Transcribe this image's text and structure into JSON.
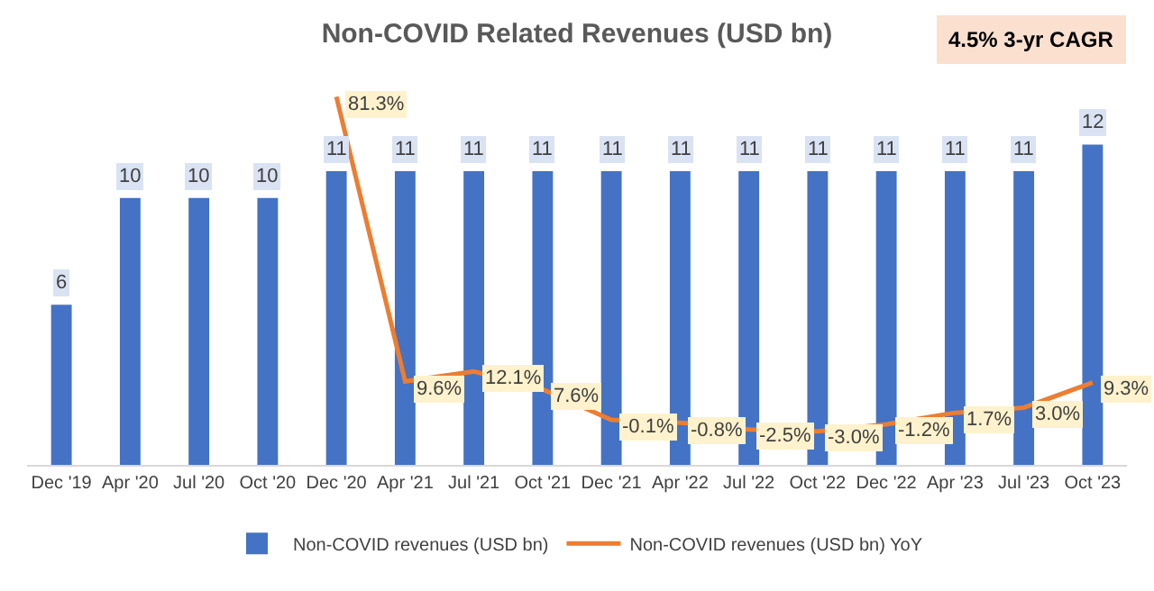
{
  "chart_data": {
    "type": "bar",
    "title": "Non-COVID Related Revenues (USD bn)",
    "categories": [
      "Dec '19",
      "Apr '20",
      "Jul '20",
      "Oct '20",
      "Dec '20",
      "Apr '21",
      "Jul '21",
      "Oct '21",
      "Dec '21",
      "Apr '22",
      "Jul '22",
      "Oct '22",
      "Dec '22",
      "Apr '23",
      "Jul '23",
      "Oct '23"
    ],
    "series": [
      {
        "name": "Non-COVID revenues (USD bn)",
        "color": "#4472c4",
        "values": [
          6,
          10,
          10,
          10,
          11,
          11,
          11,
          11,
          11,
          11,
          11,
          11,
          11,
          11,
          11,
          12
        ]
      },
      {
        "name": "Non-COVID revenues (USD bn) YoY",
        "type": "line",
        "axis": "y2",
        "color": "#ed7d31",
        "values": [
          null,
          null,
          null,
          null,
          81.3,
          9.6,
          12.1,
          7.6,
          -0.1,
          -0.8,
          -2.5,
          -3.0,
          -1.2,
          1.7,
          3.0,
          9.3
        ],
        "value_labels": [
          null,
          null,
          null,
          null,
          "81.3%",
          "9.6%",
          "12.1%",
          "7.6%",
          "-0.1%",
          "-0.8%",
          "-2.5%",
          "-3.0%",
          "-1.2%",
          "1.7%",
          "3.0%",
          "9.3%"
        ]
      }
    ],
    "data_labels": true,
    "annotations": [
      "4.5% 3-yr CAGR"
    ],
    "legend": "bottom",
    "grid": false,
    "marker": "none",
    "line_style": "solid"
  }
}
